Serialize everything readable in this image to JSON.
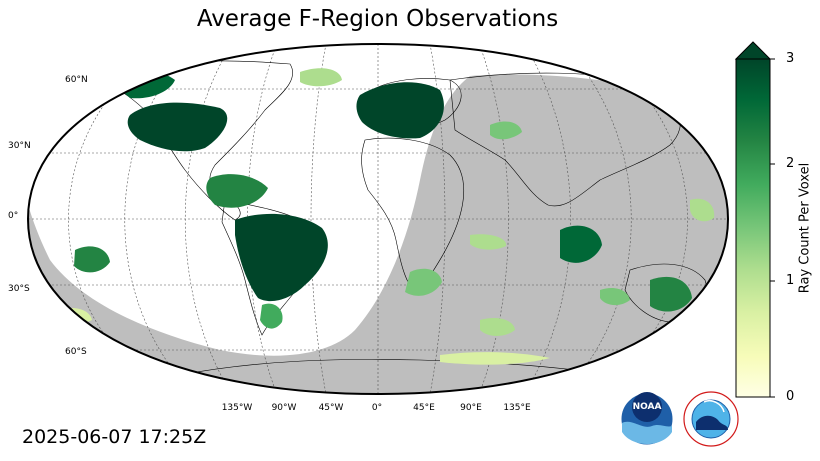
{
  "title": "Average F-Region Observations",
  "timestamp": "2025-06-07 17:25Z",
  "projection": "robinson",
  "colors": {
    "night_shade": "#bebebe",
    "coastline": "#000000",
    "grid": "#555555",
    "ocean_day": "#ffffff"
  },
  "lat_labels": [
    "60°N",
    "30°N",
    "0°",
    "30°S",
    "60°S"
  ],
  "lon_labels": [
    "135°W",
    "90°W",
    "45°W",
    "0°",
    "45°E",
    "90°E",
    "135°E"
  ],
  "colorbar": {
    "label": "Ray Count Per Voxel",
    "ticks": [
      "0",
      "1",
      "2",
      "3"
    ],
    "min": 0,
    "max": 3,
    "extend": "max",
    "colormap": [
      "#ffffe5",
      "#f7fcb9",
      "#d9f0a3",
      "#addd8e",
      "#78c679",
      "#41ab5d",
      "#238443",
      "#006837",
      "#004529"
    ]
  },
  "logos": {
    "noaa": "NOAA",
    "nws": "NATIONAL WEATHER SERVICE"
  }
}
